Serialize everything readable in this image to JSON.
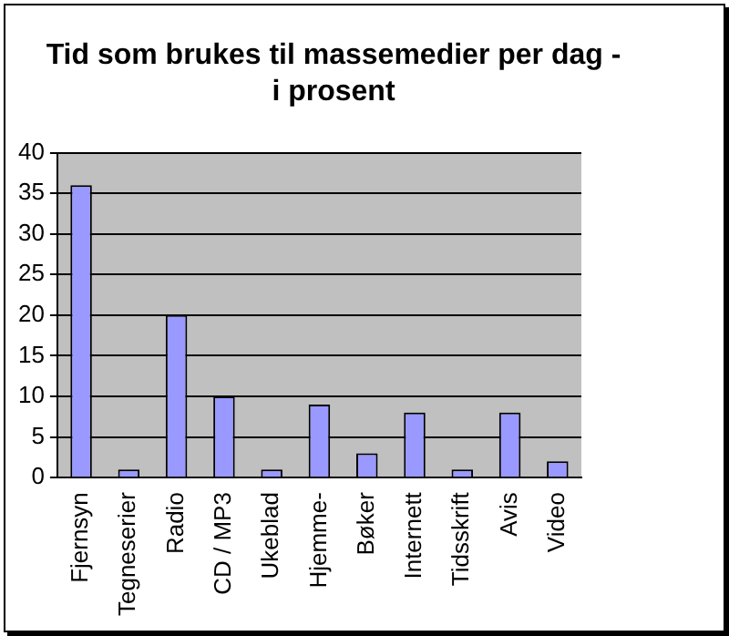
{
  "chart_data": {
    "type": "bar",
    "title": "Tid som brukes til massemedier per dag - i prosent",
    "categories": [
      "Fjernsyn",
      "Tegneserier",
      "Radio",
      "CD / MP3",
      "Ukeblad",
      "Hjemme-",
      "Bøker",
      "Internett",
      "Tidsskrift",
      "Avis",
      "Video"
    ],
    "values": [
      36,
      1,
      20,
      10,
      1,
      9,
      3,
      8,
      1,
      8,
      2
    ],
    "color": "#9999ff",
    "ylim": [
      0,
      40
    ],
    "yticks": [
      0,
      5,
      10,
      15,
      20,
      25,
      30,
      35,
      40
    ],
    "grid": "y",
    "legend": false
  }
}
